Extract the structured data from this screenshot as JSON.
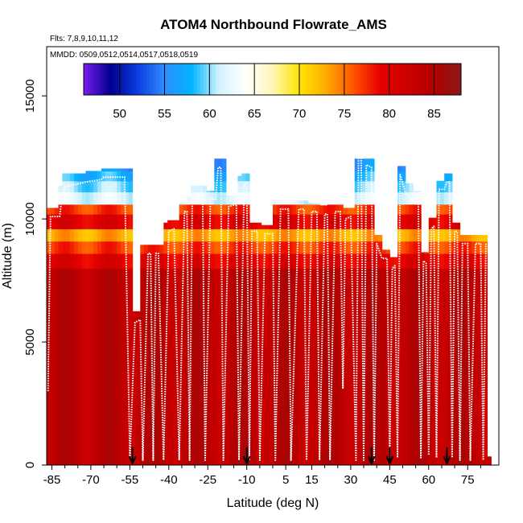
{
  "chart_data": {
    "type": "heatmap",
    "title": "ATOM4 Northbound Flowrate_AMS",
    "subtitle_flights": "Flts: 7,8,9,10,11,12",
    "subtitle_dates": "MMDD: 0509,0512,0514,0517,0518,0519",
    "xlabel": "Latitude (deg N)",
    "ylabel": "Altitude (m)",
    "xlim": [
      -87,
      87
    ],
    "ylim": [
      0,
      17000
    ],
    "x_ticks": [
      -85,
      -70,
      -55,
      -40,
      -25,
      -10,
      5,
      15,
      30,
      45,
      60,
      75
    ],
    "x_tick_labels": [
      "-85",
      "-70",
      "-55",
      "-40",
      "-25",
      "-10",
      "5",
      "15",
      "30",
      "45",
      "60",
      "75"
    ],
    "y_ticks": [
      0,
      5000,
      10000,
      15000
    ],
    "y_tick_labels": [
      "0",
      "5000",
      "10000",
      "15000"
    ],
    "colorbar": {
      "min": 46,
      "max": 88,
      "ticks": [
        50,
        55,
        60,
        65,
        70,
        75,
        80,
        85
      ],
      "tick_labels": [
        "50",
        "55",
        "60",
        "65",
        "70",
        "75",
        "80",
        "85"
      ],
      "colors": [
        "#7a1cf0",
        "#00008c",
        "#0a3de0",
        "#2e8cff",
        "#00b4ff",
        "#d2f2ff",
        "#ffffff",
        "#fff7b8",
        "#ffe400",
        "#ffab00",
        "#ff5500",
        "#e80000",
        "#cc0000",
        "#b20000",
        "#8c1a1a"
      ]
    },
    "layers": [
      {
        "alt_bottom": 0,
        "alt_top": 8000,
        "value": 84
      },
      {
        "alt_bottom": 8000,
        "alt_top": 8600,
        "value": 80
      },
      {
        "alt_bottom": 8600,
        "alt_top": 9100,
        "value": 77
      },
      {
        "alt_bottom": 9100,
        "alt_top": 9600,
        "value": 73
      },
      {
        "alt_bottom": 9600,
        "alt_top": 10200,
        "value": 80
      },
      {
        "alt_bottom": 10200,
        "alt_top": 10600,
        "value": 77
      },
      {
        "alt_bottom": 10600,
        "alt_top": 11100,
        "value": 62
      },
      {
        "alt_bottom": 11100,
        "alt_top": 11550,
        "value": 60
      },
      {
        "alt_bottom": 11550,
        "alt_top": 11950,
        "value": 58
      },
      {
        "alt_bottom": 11950,
        "alt_top": 12450,
        "value": 56
      }
    ],
    "flight_track": [
      [
        -86.5,
        3000
      ],
      [
        -85.5,
        10100
      ],
      [
        -82,
        10100
      ],
      [
        -81,
        11000
      ],
      [
        -80,
        11300
      ],
      [
        -72,
        11500
      ],
      [
        -66,
        11600
      ],
      [
        -65,
        11700
      ],
      [
        -57,
        11700
      ],
      [
        -55,
        300
      ],
      [
        -53,
        5800
      ],
      [
        -51,
        5900
      ],
      [
        -50,
        200
      ],
      [
        -48,
        8600
      ],
      [
        -47,
        8600
      ],
      [
        -46,
        200
      ],
      [
        -45,
        8600
      ],
      [
        -44,
        8600
      ],
      [
        -42,
        200
      ],
      [
        -40,
        9500
      ],
      [
        -38,
        9600
      ],
      [
        -36,
        200
      ],
      [
        -34,
        10300
      ],
      [
        -33,
        10300
      ],
      [
        -32,
        200
      ],
      [
        -31,
        10600
      ],
      [
        -27,
        11000
      ],
      [
        -26,
        200
      ],
      [
        -24,
        10800
      ],
      [
        -22,
        10800
      ],
      [
        -21,
        12100
      ],
      [
        -20,
        12100
      ],
      [
        -19,
        200
      ],
      [
        -17,
        10500
      ],
      [
        -14,
        10600
      ],
      [
        -13,
        200
      ],
      [
        -11,
        11400
      ],
      [
        -10,
        11500
      ],
      [
        -9,
        200
      ],
      [
        -8,
        9500
      ],
      [
        -6,
        9500
      ],
      [
        -5,
        200
      ],
      [
        -3,
        9400
      ],
      [
        0,
        9400
      ],
      [
        1,
        200
      ],
      [
        3,
        10400
      ],
      [
        6,
        10400
      ],
      [
        7,
        200
      ],
      [
        10,
        10400
      ],
      [
        12,
        10400
      ],
      [
        13,
        200
      ],
      [
        15,
        10300
      ],
      [
        17,
        10300
      ],
      [
        18,
        200
      ],
      [
        20,
        10200
      ],
      [
        21,
        10200
      ],
      [
        22,
        200
      ],
      [
        24,
        10300
      ],
      [
        26,
        10300
      ],
      [
        27,
        3100
      ],
      [
        28,
        10000
      ],
      [
        30,
        10100
      ],
      [
        32,
        200
      ],
      [
        33,
        12800
      ],
      [
        34,
        12800
      ],
      [
        35,
        200
      ],
      [
        36,
        12200
      ],
      [
        38,
        12100
      ],
      [
        39,
        200
      ],
      [
        40,
        9000
      ],
      [
        42,
        8400
      ],
      [
        44,
        8400
      ],
      [
        45,
        300
      ],
      [
        46,
        8000
      ],
      [
        47,
        8100
      ],
      [
        48,
        300
      ],
      [
        49,
        11800
      ],
      [
        51,
        11100
      ],
      [
        53,
        10800
      ],
      [
        56,
        10600
      ],
      [
        57,
        300
      ],
      [
        58,
        8300
      ],
      [
        59,
        8200
      ],
      [
        60,
        400
      ],
      [
        61,
        9600
      ],
      [
        62,
        9700
      ],
      [
        63,
        300
      ],
      [
        64,
        11200
      ],
      [
        66,
        11200
      ],
      [
        67,
        11500
      ],
      [
        68,
        11500
      ],
      [
        69,
        300
      ],
      [
        70,
        9500
      ],
      [
        71,
        9500
      ],
      [
        72,
        200
      ],
      [
        73,
        9000
      ],
      [
        75,
        9000
      ],
      [
        76,
        200
      ],
      [
        78,
        9000
      ],
      [
        80,
        9000
      ],
      [
        81,
        200
      ],
      [
        82,
        9000
      ]
    ],
    "arrow_latitudes": [
      -54,
      -10,
      38,
      45,
      67
    ]
  }
}
